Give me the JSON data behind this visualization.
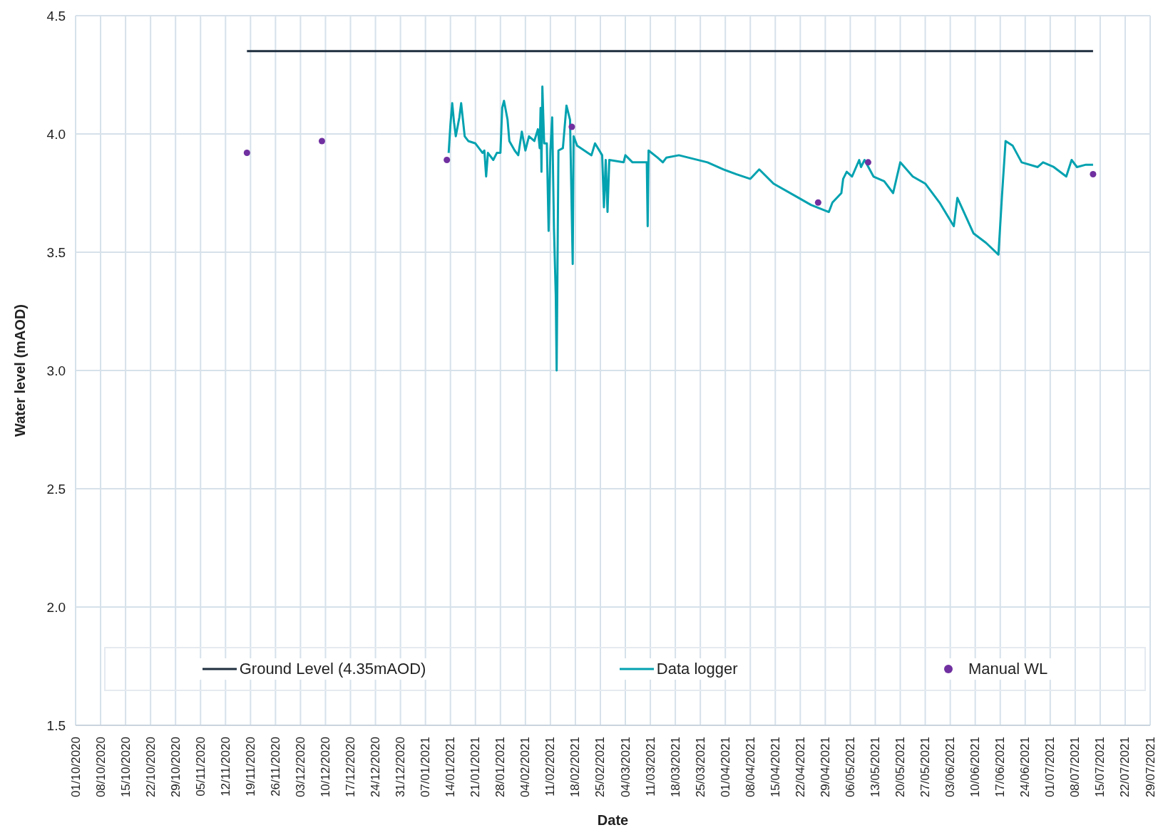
{
  "chart_data": {
    "type": "line",
    "xlabel": "Date",
    "ylabel": "Water level (mAOD)",
    "xlim": [
      "2020-10-01",
      "2021-07-29"
    ],
    "xticks": [
      {
        "value": "2020-10-01",
        "label": "01/10/2020"
      },
      {
        "value": "2020-10-08",
        "label": "08/10/2020"
      },
      {
        "value": "2020-10-15",
        "label": "15/10/2020"
      },
      {
        "value": "2020-10-22",
        "label": "22/10/2020"
      },
      {
        "value": "2020-10-29",
        "label": "29/10/2020"
      },
      {
        "value": "2020-11-05",
        "label": "05/11/2020"
      },
      {
        "value": "2020-11-12",
        "label": "12/11/2020"
      },
      {
        "value": "2020-11-19",
        "label": "19/11/2020"
      },
      {
        "value": "2020-11-26",
        "label": "26/11/2020"
      },
      {
        "value": "2020-12-03",
        "label": "03/12/2020"
      },
      {
        "value": "2020-12-10",
        "label": "10/12/2020"
      },
      {
        "value": "2020-12-17",
        "label": "17/12/2020"
      },
      {
        "value": "2020-12-24",
        "label": "24/12/2020"
      },
      {
        "value": "2020-12-31",
        "label": "31/12/2020"
      },
      {
        "value": "2021-01-07",
        "label": "07/01/2021"
      },
      {
        "value": "2021-01-14",
        "label": "14/01/2021"
      },
      {
        "value": "2021-01-21",
        "label": "21/01/2021"
      },
      {
        "value": "2021-01-28",
        "label": "28/01/2021"
      },
      {
        "value": "2021-02-04",
        "label": "04/02/2021"
      },
      {
        "value": "2021-02-11",
        "label": "11/02/2021"
      },
      {
        "value": "2021-02-18",
        "label": "18/02/2021"
      },
      {
        "value": "2021-02-25",
        "label": "25/02/2021"
      },
      {
        "value": "2021-03-04",
        "label": "04/03/2021"
      },
      {
        "value": "2021-03-11",
        "label": "11/03/2021"
      },
      {
        "value": "2021-03-18",
        "label": "18/03/2021"
      },
      {
        "value": "2021-03-25",
        "label": "25/03/2021"
      },
      {
        "value": "2021-04-01",
        "label": "01/04/2021"
      },
      {
        "value": "2021-04-08",
        "label": "08/04/2021"
      },
      {
        "value": "2021-04-15",
        "label": "15/04/2021"
      },
      {
        "value": "2021-04-22",
        "label": "22/04/2021"
      },
      {
        "value": "2021-04-29",
        "label": "29/04/2021"
      },
      {
        "value": "2021-05-06",
        "label": "06/05/2021"
      },
      {
        "value": "2021-05-13",
        "label": "13/05/2021"
      },
      {
        "value": "2021-05-20",
        "label": "20/05/2021"
      },
      {
        "value": "2021-05-27",
        "label": "27/05/2021"
      },
      {
        "value": "2021-06-03",
        "label": "03/06/2021"
      },
      {
        "value": "2021-06-10",
        "label": "10/06/2021"
      },
      {
        "value": "2021-06-17",
        "label": "17/06/2021"
      },
      {
        "value": "2021-06-24",
        "label": "24/06/2021"
      },
      {
        "value": "2021-07-01",
        "label": "01/07/2021"
      },
      {
        "value": "2021-07-08",
        "label": "08/07/2021"
      },
      {
        "value": "2021-07-15",
        "label": "15/07/2021"
      },
      {
        "value": "2021-07-22",
        "label": "22/07/2021"
      },
      {
        "value": "2021-07-29",
        "label": "29/07/2021"
      }
    ],
    "ylim": [
      1.5,
      4.5
    ],
    "yticks": [
      1.5,
      {
        "value": 2,
        "label": "2.0"
      },
      2.5,
      {
        "value": 3,
        "label": "3.0"
      },
      3.5,
      {
        "value": 4,
        "label": "4.0"
      },
      4.5
    ],
    "grid": true,
    "legend": "bottom",
    "line_style": "solid",
    "series": [
      {
        "name": "Ground Level (4.35mAOD)",
        "type": "line",
        "color": "#1f2e3e",
        "x": [
          "2020-11-18",
          "2021-07-13"
        ],
        "values": [
          4.35,
          4.35
        ]
      },
      {
        "name": "Data logger",
        "color": "#03a2b0",
        "x": [
          "2021-01-13T12:00",
          "2021-01-14",
          "2021-01-14T12:00",
          "2021-01-15",
          "2021-01-15T12:00",
          "2021-01-16T12:00",
          "2021-01-17",
          "2021-01-18",
          "2021-01-19",
          "2021-01-21",
          "2021-01-23",
          "2021-01-23T12:00",
          "2021-01-24",
          "2021-01-24T12:00",
          "2021-01-26",
          "2021-01-27",
          "2021-01-28",
          "2021-01-28T12:00",
          "2021-01-29",
          "2021-01-30",
          "2021-01-30T12:00",
          "2021-02-01",
          "2021-02-02",
          "2021-02-03",
          "2021-02-04",
          "2021-02-05",
          "2021-02-06T12:00",
          "2021-02-07T12:00",
          "2021-02-08",
          "2021-02-08T06:00",
          "2021-02-08T12:00",
          "2021-02-08T18:00",
          "2021-02-09T06:00",
          "2021-02-10",
          "2021-02-10T12:00",
          "2021-02-11",
          "2021-02-11T12:00",
          "2021-02-12",
          "2021-02-12T12:00",
          "2021-02-12T18:00",
          "2021-02-13T06:00",
          "2021-02-14T12:00",
          "2021-02-15T12:00",
          "2021-02-16T12:00",
          "2021-02-17T06:00",
          "2021-02-17T12:00",
          "2021-02-18T12:00",
          "2021-02-22T12:00",
          "2021-02-23T12:00",
          "2021-02-25T12:00",
          "2021-02-26",
          "2021-02-26T12:00",
          "2021-02-27",
          "2021-02-27T12:00",
          "2021-03-03T12:00",
          "2021-03-04",
          "2021-03-06",
          "2021-03-10",
          "2021-03-10T06:00",
          "2021-03-10T12:00",
          "2021-03-13",
          "2021-03-14T12:00",
          "2021-03-15T12:00",
          "2021-03-19",
          "2021-03-27",
          "2021-03-31T12:00",
          "2021-04-04",
          "2021-04-08",
          "2021-04-10T12:00",
          "2021-04-14T12:00",
          "2021-04-21T12:00",
          "2021-04-25",
          "2021-04-30",
          "2021-05-01",
          "2021-05-03T12:00",
          "2021-05-04",
          "2021-05-05",
          "2021-05-06T12:00",
          "2021-05-08T12:00",
          "2021-05-09",
          "2021-05-10",
          "2021-05-12T12:00",
          "2021-05-15T12:00",
          "2021-05-18",
          "2021-05-20",
          "2021-05-23T12:00",
          "2021-05-27",
          "2021-05-31",
          "2021-06-04",
          "2021-06-05",
          "2021-06-09T12:00",
          "2021-06-13",
          "2021-06-16T12:00",
          "2021-06-17T12:00",
          "2021-06-18T12:00",
          "2021-06-20T12:00",
          "2021-06-23",
          "2021-06-27T12:00",
          "2021-06-29",
          "2021-07-02",
          "2021-07-05T12:00",
          "2021-07-07",
          "2021-07-08T12:00",
          "2021-07-11",
          "2021-07-13"
        ],
        "values": [
          3.92,
          4.04,
          4.13,
          4.05,
          3.99,
          4.07,
          4.13,
          3.99,
          3.97,
          3.96,
          3.92,
          3.93,
          3.82,
          3.92,
          3.89,
          3.92,
          3.92,
          4.11,
          4.14,
          4.06,
          3.97,
          3.93,
          3.91,
          4.01,
          3.93,
          3.99,
          3.97,
          4.02,
          3.94,
          4.11,
          3.84,
          4.2,
          3.96,
          3.96,
          3.59,
          3.93,
          4.07,
          3.6,
          3.32,
          3.0,
          3.93,
          3.94,
          4.12,
          4.06,
          3.45,
          3.99,
          3.95,
          3.91,
          3.96,
          3.91,
          3.69,
          3.89,
          3.67,
          3.89,
          3.88,
          3.91,
          3.88,
          3.88,
          3.61,
          3.93,
          3.9,
          3.88,
          3.9,
          3.91,
          3.88,
          3.85,
          3.83,
          3.81,
          3.85,
          3.79,
          3.73,
          3.7,
          3.67,
          3.71,
          3.75,
          3.81,
          3.84,
          3.82,
          3.89,
          3.86,
          3.89,
          3.82,
          3.8,
          3.75,
          3.88,
          3.82,
          3.79,
          3.71,
          3.61,
          3.73,
          3.58,
          3.54,
          3.49,
          3.74,
          3.97,
          3.95,
          3.88,
          3.86,
          3.88,
          3.86,
          3.82,
          3.89,
          3.86,
          3.87,
          3.87
        ]
      },
      {
        "name": "Manual WL",
        "type": "scatter",
        "marker": "circle",
        "color": "#7030a0",
        "x": [
          "2020-11-18",
          "2020-12-09",
          "2021-01-13",
          "2021-02-17",
          "2021-04-27",
          "2021-05-11",
          "2021-07-13"
        ],
        "values": [
          3.92,
          3.97,
          3.89,
          4.03,
          3.71,
          3.88,
          3.83
        ]
      }
    ]
  }
}
